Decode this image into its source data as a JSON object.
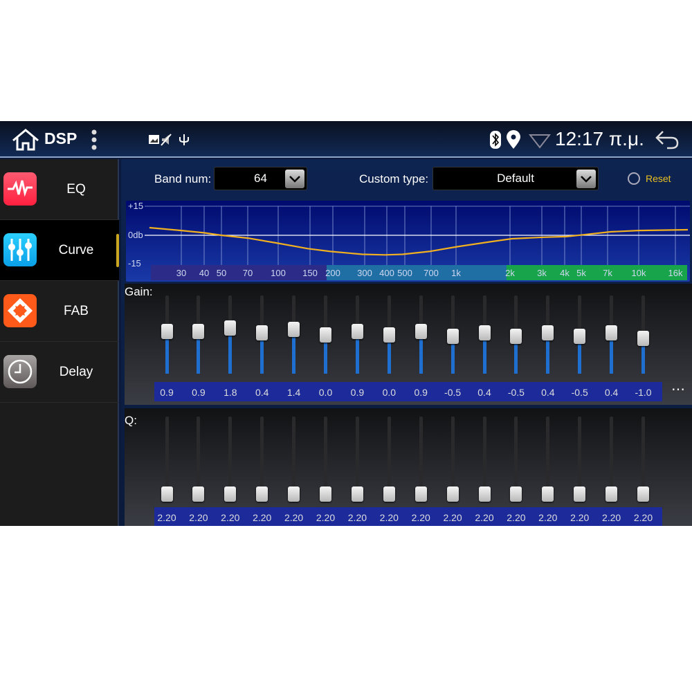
{
  "statusbar": {
    "title": "DSP",
    "time": "12:17 π.μ.",
    "icons": [
      "home-icon",
      "more-vert-icon",
      "image-icon",
      "mute-icon",
      "usb-icon",
      "bluetooth-icon",
      "location-icon",
      "wifi-icon",
      "back-icon"
    ]
  },
  "sidebar": {
    "items": [
      {
        "label": "EQ",
        "icon": "pulse-icon",
        "color": "#ff3b55"
      },
      {
        "label": "Curve",
        "icon": "sliders-icon",
        "color": "#1ab8f0",
        "selected": true
      },
      {
        "label": "FAB",
        "icon": "fader-balance-icon",
        "color": "#ff5a1a"
      },
      {
        "label": "Delay",
        "icon": "clock-icon",
        "color": "#8a8585"
      }
    ]
  },
  "controls": {
    "band_label": "Band num:",
    "band_value": "64",
    "type_label": "Custom type:",
    "type_value": "Default",
    "reset_label": "Reset"
  },
  "chart_data": {
    "type": "line",
    "ylabels": [
      "+15",
      "0db",
      "-15"
    ],
    "ylim": [
      -15,
      15
    ],
    "x_ticks": [
      "30",
      "40",
      "50",
      "70",
      "100",
      "150",
      "200",
      "300",
      "400",
      "500",
      "700",
      "1k",
      "2k",
      "3k",
      "4k",
      "5k",
      "7k",
      "10k",
      "16k"
    ],
    "curve": [
      [
        20,
        4
      ],
      [
        30,
        2.5
      ],
      [
        40,
        1.3
      ],
      [
        50,
        0
      ],
      [
        70,
        -1.5
      ],
      [
        100,
        -4
      ],
      [
        150,
        -7
      ],
      [
        200,
        -8.5
      ],
      [
        300,
        -10
      ],
      [
        400,
        -10.3
      ],
      [
        500,
        -10
      ],
      [
        700,
        -8.5
      ],
      [
        1000,
        -6
      ],
      [
        1500,
        -3.5
      ],
      [
        2000,
        -1.8
      ],
      [
        3000,
        -1
      ],
      [
        4000,
        -0.7
      ],
      [
        5000,
        0.3
      ],
      [
        7000,
        1.8
      ],
      [
        10000,
        2.5
      ],
      [
        20000,
        2.9
      ]
    ]
  },
  "gain": {
    "label": "Gain:",
    "values": [
      "0.9",
      "0.9",
      "1.8",
      "0.4",
      "1.4",
      "0.0",
      "0.9",
      "0.0",
      "0.9",
      "-0.5",
      "0.4",
      "-0.5",
      "0.4",
      "-0.5",
      "0.4",
      "-1.0"
    ],
    "more": "⋯"
  },
  "q": {
    "label": "Q:",
    "values": [
      "2.20",
      "2.20",
      "2.20",
      "2.20",
      "2.20",
      "2.20",
      "2.20",
      "2.20",
      "2.20",
      "2.20",
      "2.20",
      "2.20",
      "2.20",
      "2.20",
      "2.20",
      "2.20"
    ]
  }
}
